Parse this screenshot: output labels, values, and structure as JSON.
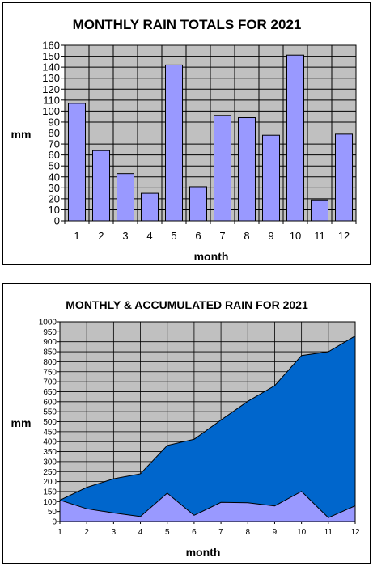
{
  "chart_data": [
    {
      "type": "bar",
      "title": "MONTHLY RAIN TOTALS FOR 2021",
      "xlabel": "month",
      "ylabel": "mm",
      "categories": [
        "1",
        "2",
        "3",
        "4",
        "5",
        "6",
        "7",
        "8",
        "9",
        "10",
        "11",
        "12"
      ],
      "values": [
        107,
        64,
        43,
        25,
        142,
        31,
        96,
        94,
        78,
        151,
        19,
        79
      ],
      "ylim": [
        0,
        160
      ],
      "yticks": [
        "0",
        "10",
        "20",
        "30",
        "40",
        "50",
        "60",
        "70",
        "80",
        "90",
        "100",
        "110",
        "120",
        "130",
        "140",
        "150",
        "160"
      ],
      "grid": true,
      "colors": {
        "plot_bg": "#c0c0c0",
        "bar": "#9999ff",
        "grid": "#000000"
      }
    },
    {
      "type": "area",
      "title": "MONTHLY & ACCUMULATED RAIN FOR 2021",
      "xlabel": "month",
      "ylabel": "mm",
      "categories": [
        "1",
        "2",
        "3",
        "4",
        "5",
        "6",
        "7",
        "8",
        "9",
        "10",
        "11",
        "12"
      ],
      "series": [
        {
          "values": [
            107,
            171,
            214,
            239,
            381,
            412,
            508,
            602,
            680,
            831,
            850,
            929
          ]
        },
        {
          "values": [
            107,
            64,
            43,
            25,
            142,
            31,
            96,
            94,
            78,
            151,
            19,
            79
          ]
        }
      ],
      "ylim": [
        0,
        1000
      ],
      "yticks": [
        "0",
        "50",
        "100",
        "150",
        "200",
        "250",
        "300",
        "350",
        "400",
        "450",
        "500",
        "550",
        "600",
        "650",
        "700",
        "750",
        "800",
        "850",
        "900",
        "950",
        "1000"
      ],
      "grid": true,
      "colors": {
        "plot_bg": "#c0c0c0",
        "accumulated": "#0066cc",
        "monthly": "#9999ff",
        "grid": "#000000"
      }
    }
  ]
}
